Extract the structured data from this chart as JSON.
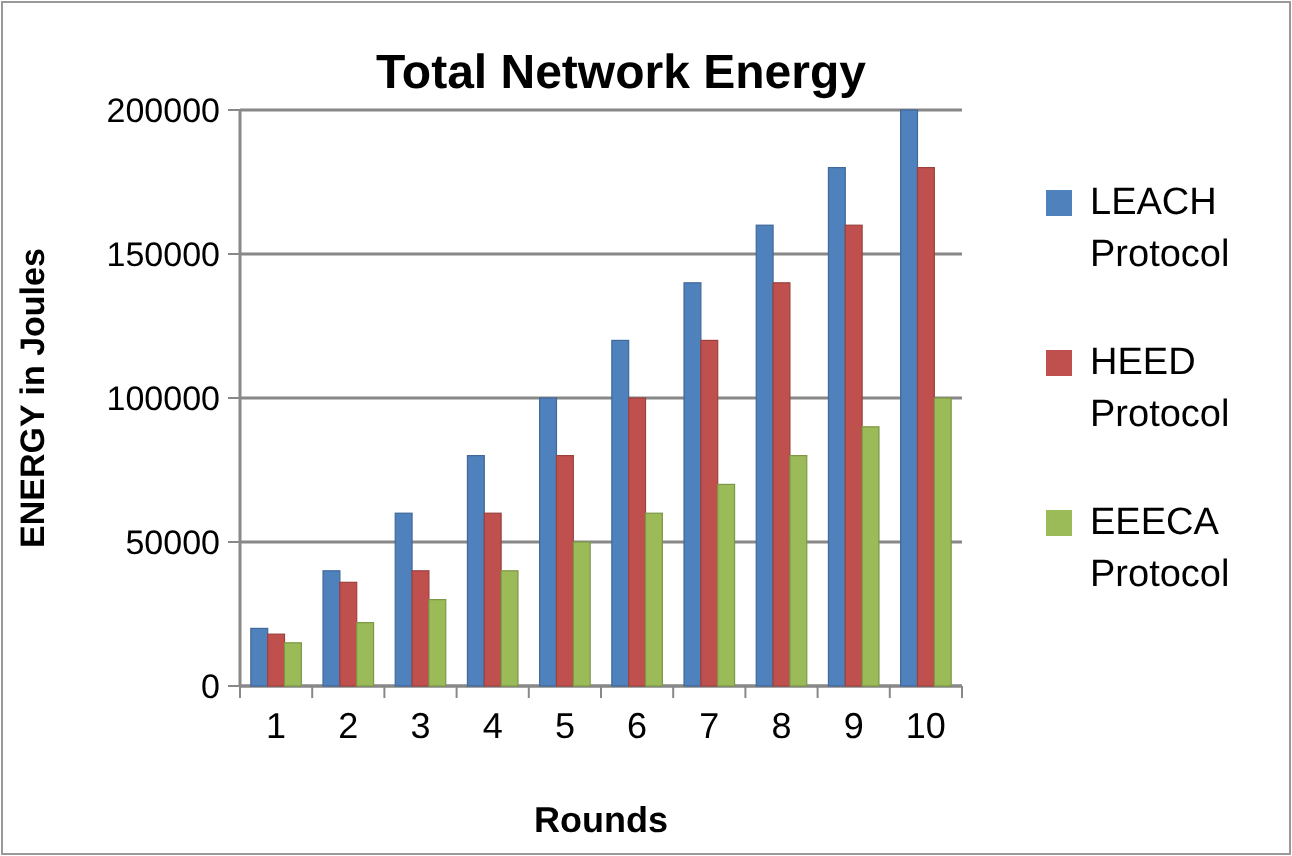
{
  "chart_data": {
    "type": "bar",
    "title": "Total Network Energy",
    "xlabel": "Rounds",
    "ylabel": "ENERGY in Joules",
    "categories": [
      "1",
      "2",
      "3",
      "4",
      "5",
      "6",
      "7",
      "8",
      "9",
      "10"
    ],
    "series": [
      {
        "name": "LEACH Protocol",
        "color": "#4f81bd",
        "values": [
          20000,
          40000,
          60000,
          80000,
          100000,
          120000,
          140000,
          160000,
          180000,
          200000
        ]
      },
      {
        "name": "HEED Protocol",
        "color": "#c0504d",
        "values": [
          18000,
          36000,
          40000,
          60000,
          80000,
          100000,
          120000,
          140000,
          160000,
          180000
        ]
      },
      {
        "name": "EEECA Protocol",
        "color": "#9bbb59",
        "values": [
          15000,
          22000,
          30000,
          40000,
          50000,
          60000,
          70000,
          80000,
          90000,
          100000
        ]
      }
    ],
    "ylim": [
      0,
      200000
    ],
    "yticks": [
      0,
      50000,
      100000,
      150000,
      200000
    ],
    "grid": "y",
    "legend": "right"
  }
}
